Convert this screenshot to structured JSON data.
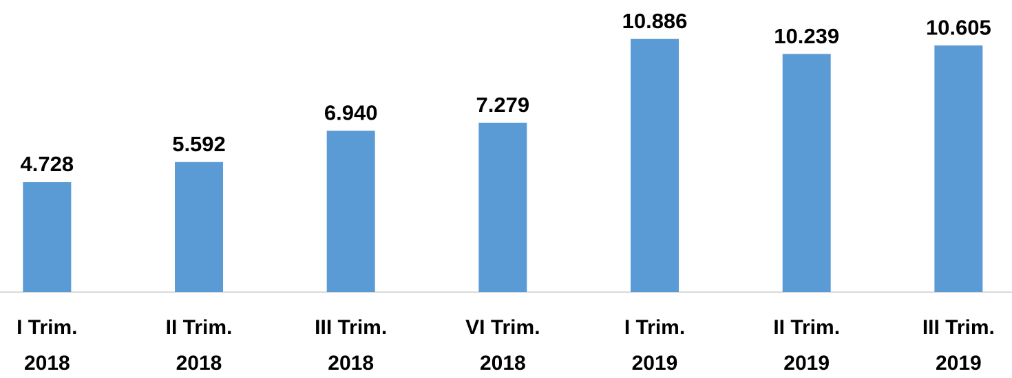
{
  "chart_data": {
    "type": "bar",
    "categories": [
      [
        "I Trim.",
        "2018"
      ],
      [
        "II Trim.",
        "2018"
      ],
      [
        "III Trim.",
        "2018"
      ],
      [
        "VI Trim.",
        "2018"
      ],
      [
        "I Trim.",
        "2019"
      ],
      [
        "II Trim.",
        "2019"
      ],
      [
        "III Trim.",
        "2019"
      ]
    ],
    "values": [
      4.728,
      5.592,
      6.94,
      7.279,
      10.886,
      10.239,
      10.605
    ],
    "value_labels": [
      "4.728",
      "5.592",
      "6.940",
      "7.279",
      "10.886",
      "10.239",
      "10.605"
    ],
    "color": "#5b9bd5",
    "ylim": [
      0,
      12
    ]
  }
}
